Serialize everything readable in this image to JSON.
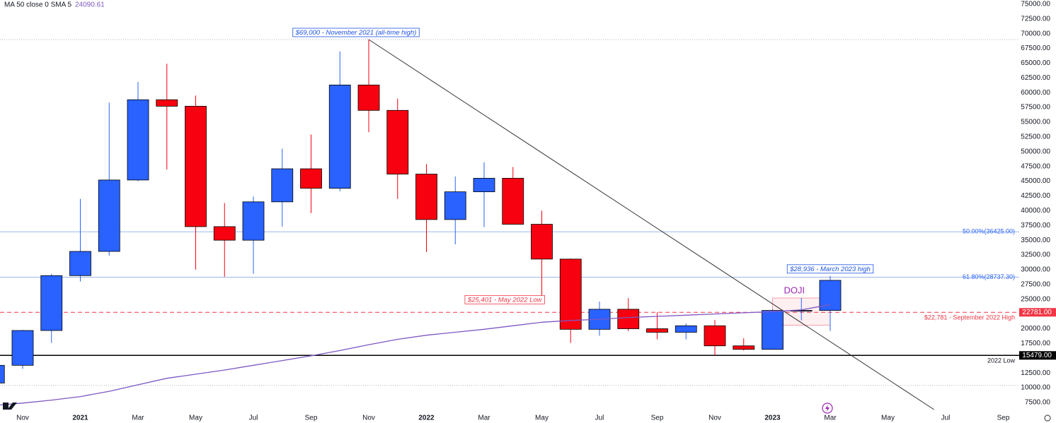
{
  "chart_data": {
    "type": "candlestick",
    "legend": "MA 50 close 0 SMA 5",
    "categories": [
      null,
      "Nov",
      null,
      "2021",
      null,
      "Mar",
      null,
      "May",
      null,
      "Jul",
      null,
      "Sep",
      null,
      "Nov",
      null,
      "2022",
      null,
      "Mar",
      null,
      "May",
      null,
      "Jul",
      null,
      "Sep",
      null,
      "Nov",
      null,
      "2023",
      null,
      "Mar",
      null,
      "May",
      null,
      "Jul",
      null,
      "Sep"
    ],
    "open": [
      10800,
      13800,
      19700,
      29000,
      33100,
      45200,
      58800,
      57700,
      37300,
      35000,
      41500,
      47100,
      43800,
      61300,
      57000,
      46200,
      38500,
      43200,
      45500,
      37700,
      31800,
      19900,
      23300,
      20000,
      19400,
      20500,
      17100,
      16500,
      23100,
      23100,
      null,
      null,
      null,
      null,
      null,
      null
    ],
    "high": [
      14000,
      19800,
      29300,
      42000,
      58300,
      61800,
      64900,
      59500,
      41300,
      42400,
      50500,
      52900,
      67000,
      69000,
      59000,
      47900,
      45800,
      48200,
      47400,
      40000,
      31900,
      24600,
      25200,
      22781,
      20900,
      21500,
      18400,
      23300,
      25200,
      28936,
      null,
      null,
      null,
      null,
      null,
      null
    ],
    "low": [
      10400,
      13200,
      17600,
      28000,
      32400,
      45000,
      47000,
      30000,
      28800,
      29300,
      37300,
      39600,
      43300,
      53300,
      42000,
      33000,
      34300,
      37200,
      37700,
      25401,
      17600,
      18800,
      19600,
      18200,
      18200,
      15479,
      16300,
      16500,
      21400,
      19600,
      null,
      null,
      null,
      null,
      null,
      null
    ],
    "close": [
      13800,
      19700,
      29000,
      33100,
      45200,
      58800,
      57700,
      37300,
      35000,
      41500,
      47100,
      43800,
      61300,
      57000,
      46200,
      38500,
      43200,
      45500,
      37700,
      31800,
      19900,
      23300,
      20000,
      19400,
      20500,
      17100,
      16500,
      23100,
      23100,
      28200,
      null,
      null,
      null,
      null,
      null,
      null
    ],
    "up_color": "#2962ff",
    "down_color": "#f7000f",
    "ma": {
      "color": "#7e57c2",
      "values": [
        7000,
        7400,
        7900,
        8500,
        9400,
        10500,
        11600,
        12300,
        13000,
        13800,
        14600,
        15400,
        16300,
        17300,
        18200,
        18900,
        19400,
        19900,
        20500,
        21100,
        21400,
        21600,
        21900,
        22100,
        22300,
        22500,
        22700,
        22900,
        23200,
        24090.61,
        null,
        null,
        null,
        null,
        null,
        null
      ]
    },
    "ylim": [
      6300,
      75700
    ],
    "yticks": [
      {
        "value": 7500,
        "label": "7500.00"
      },
      {
        "value": 10000,
        "label": "10000.00"
      },
      {
        "value": 12500,
        "label": "12500.00"
      },
      {
        "value": 17500,
        "label": "17500.00"
      },
      {
        "value": 20000,
        "label": "20000.00"
      },
      {
        "value": 25000,
        "label": "25000.00"
      },
      {
        "value": 27500,
        "label": "27500.00"
      },
      {
        "value": 30000,
        "label": "30000.00"
      },
      {
        "value": 32500,
        "label": "32500.00"
      },
      {
        "value": 35000,
        "label": "35000.00"
      },
      {
        "value": 37500,
        "label": "37500.00"
      },
      {
        "value": 40000,
        "label": "40000.00"
      },
      {
        "value": 42500,
        "label": "42500.00"
      },
      {
        "value": 45000,
        "label": "45000.00"
      },
      {
        "value": 47500,
        "label": "47500.00"
      },
      {
        "value": 50000,
        "label": "50000.00"
      },
      {
        "value": 52500,
        "label": "52500.00"
      },
      {
        "value": 55000,
        "label": "55000.00"
      },
      {
        "value": 57500,
        "label": "57500.00"
      },
      {
        "value": 60000,
        "label": "60000.00"
      },
      {
        "value": 62500,
        "label": "62500.00"
      },
      {
        "value": 65000,
        "label": "65000.00"
      },
      {
        "value": 67500,
        "label": "67500.00"
      },
      {
        "value": 70000,
        "label": "70000.00"
      },
      {
        "value": 72500,
        "label": "72500.00"
      },
      {
        "value": 75000,
        "label": "75000.00"
      }
    ],
    "levels": [
      {
        "value": 69000,
        "color": "#b2b5be",
        "style": "dotted"
      },
      {
        "value": 36425,
        "color": "#9ab8e8",
        "style": "solid",
        "label": "50.00%(36425.00)",
        "label_color": "#2962ff"
      },
      {
        "value": 28737.3,
        "color": "#9ab8e8",
        "style": "solid",
        "label": "61.80%(28737.30)",
        "label_color": "#2962ff"
      },
      {
        "value": 22781,
        "color": "#f23645",
        "style": "dashed",
        "label": "$22,781 - September 2022 High",
        "label_color": "#f23645",
        "axis_label": "22781.00"
      },
      {
        "value": 15479,
        "color": "#000000",
        "style": "solid",
        "label": "2022 Low",
        "label_color": "#131722",
        "axis_label": "15479.00"
      },
      {
        "value": 10400,
        "color": "#b2b5be",
        "style": "dotted"
      }
    ],
    "trendline": {
      "x": [
        13,
        32.6
      ],
      "values": [
        69000,
        6300
      ],
      "color": "#333333"
    },
    "annotations": [
      {
        "text": "$69,000 - November 2021 (all-time high)",
        "x": 13,
        "value": 69000,
        "color": "#1e53e5",
        "place": "above"
      },
      {
        "text": "$25,401 - May 2022 Low",
        "x": 19,
        "value": 25401,
        "color": "#f23645",
        "place": "left"
      },
      {
        "text": "$28,936 - March 2023 high",
        "x": 29,
        "value": 28936,
        "color": "#1e53e5",
        "place": "above"
      }
    ],
    "doji": {
      "label": "DOJI",
      "x": [
        27,
        29
      ],
      "values": [
        25200,
        20600
      ],
      "color": "#9c27b0"
    }
  }
}
